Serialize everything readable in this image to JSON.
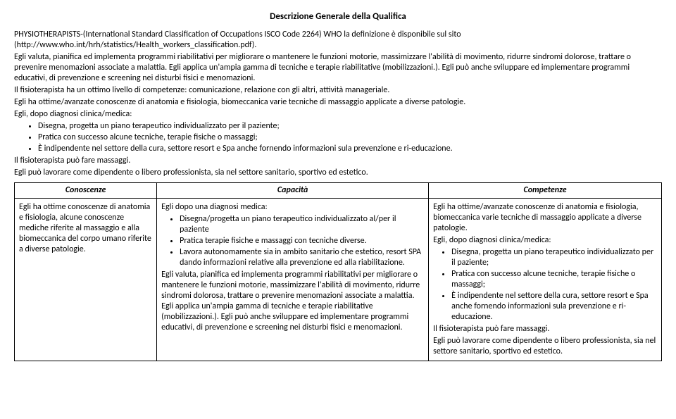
{
  "title": "Descrizione Generale della Qualifica",
  "intro": {
    "p1": "PHYSIOTHERAPISTS-(International Standard Classification of Occupations ISCO Code 2264) WHO la definizione è disponibile sul sito (http://www.who.int/hrh/statistics/Health_workers_classification.pdf).",
    "p2": "Egli valuta, pianifica ed implementa programmi riabilitativi per migliorare o mantenere le funzioni motorie, massimizzare l'abilità di movimento, ridurre sindromi dolorose, trattare o prevenire menomazioni associate a malattia. Egli applica un'ampia gamma di tecniche e terapie riabilitative (mobilizzazioni.). Egli può anche sviluppare ed implementare programmi educativi, di prevenzione e screening nei disturbi fisici e menomazioni.",
    "p3": "Il fisioterapista ha un ottimo livello di competenze: comunicazione, relazione con gli altri, attività manageriale.",
    "p4": "Egli ha ottime/avanzate conoscenze di anatomia e fisiologia, biomeccanica varie tecniche di massaggio applicate a diverse patologie.",
    "p5": "Egli, dopo diagnosi clinica/medica:",
    "bullets": [
      "Disegna, progetta un piano terapeutico individualizzato per il paziente;",
      "Pratica con successo alcune tecniche, terapie fisiche o massaggi;",
      "È indipendente nel settore della cura, settore resort e Spa anche fornendo informazioni sula prevenzione e ri-educazione."
    ],
    "p6": "Il fisioterapista può fare massaggi.",
    "p7": "Egli può lavorare come dipendente o libero professionista, sia nel settore sanitario, sportivo ed estetico."
  },
  "table": {
    "headers": [
      "Conoscenze",
      "Capacità",
      "Competenze"
    ],
    "col1": {
      "p1": "Egli ha ottime conoscenze di anatomia e fisiologia, alcune conoscenze mediche riferite al massaggio e alla biomeccanica del corpo umano riferite a diverse patologie."
    },
    "col2": {
      "p1": "Egli dopo una diagnosi medica:",
      "bullets": [
        "Disegna/progetta un piano terapeutico individualizzato al/per il paziente",
        "Pratica terapie fisiche e massaggi con tecniche diverse.",
        "Lavora autonomamente sia in ambito sanitario che estetico, resort SPA dando informazioni relative alla prevenzione ed alla riabilitazione."
      ],
      "p2": "Egli valuta, pianifica ed implementa programmi riabilitativi per migliorare o mantenere le funzioni motorie, massimizzare l'abilità di movimento, ridurre sindromi dolorosa, trattare o prevenire menomazioni associate a malattia. Egli applica un'ampia gamma di tecniche e terapie riabilitative (mobilizzazioni.). Egli può anche sviluppare ed implementare programmi educativi, di prevenzione e screening nei disturbi fisici e menomazioni."
    },
    "col3": {
      "p1": "Egli ha ottime/avanzate conoscenze di anatomia e fisiologia, biomeccanica varie tecniche di massaggio applicate a diverse patologie.",
      "p2": "Egli, dopo diagnosi clinica/medica:",
      "bullets": [
        "Disegna, progetta un piano terapeutico individualizzato per il paziente;",
        "Pratica con successo alcune tecniche, terapie fisiche o massaggi;",
        "È indipendente nel settore della cura, settore resort e Spa anche fornendo informazioni sula prevenzione e ri-educazione."
      ],
      "p3": "Il fisioterapista può fare massaggi.",
      "p4": "Egli può lavorare come dipendente o libero professionista, sia nel settore sanitario, sportivo ed estetico."
    }
  }
}
